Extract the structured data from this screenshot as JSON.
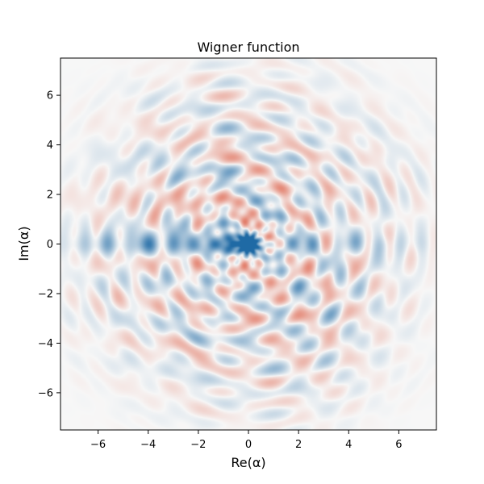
{
  "chart_data": {
    "type": "heatmap",
    "title": "Wigner function",
    "xlabel": "Re(α)",
    "ylabel": "Im(α)",
    "xlim": [
      -7.5,
      7.5
    ],
    "ylim": [
      -7.5,
      7.5
    ],
    "xticks": [
      -6,
      -4,
      -2,
      0,
      2,
      4,
      6
    ],
    "yticks": [
      -6,
      -4,
      -2,
      0,
      2,
      4,
      6
    ],
    "xtick_labels": [
      "−6",
      "−4",
      "−2",
      "0",
      "2",
      "4",
      "6"
    ],
    "ytick_labels": [
      "−6",
      "−4",
      "−2",
      "0",
      "2",
      "4",
      "6"
    ],
    "colormap": "diverging (red negative / blue positive)",
    "colors": {
      "positive": "#1f6aa5",
      "negative": "#d9472b",
      "zero": "#f7f7f7"
    },
    "grid": false,
    "legend": "none",
    "features": {
      "central_peaks": [
        {
          "re": 0.0,
          "im": 0.0,
          "sign": "positive"
        },
        {
          "re": -0.75,
          "im": 0.0,
          "sign": "positive"
        }
      ],
      "pattern": "interference fringes of a quantum superposition state"
    }
  }
}
